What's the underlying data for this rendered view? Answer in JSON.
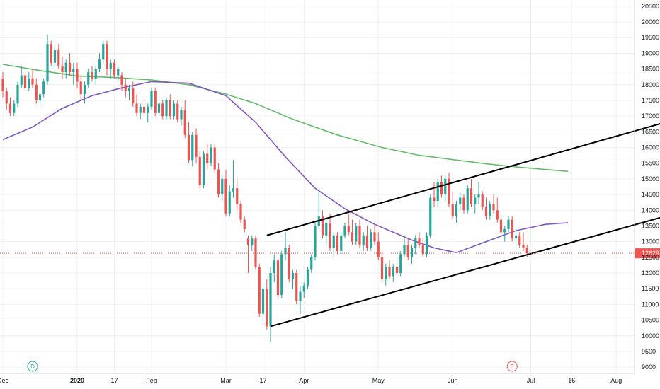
{
  "chart_data": {
    "type": "candlestick",
    "colors": {
      "up": "#26a69a",
      "down": "#ef5350",
      "ma_long": "#66bb6a",
      "ma_medium": "#7e57c2",
      "channel": "#000000",
      "price_line": "#ef5350",
      "grid": "#eef0f3",
      "axis_text": "#131722"
    },
    "y_axis": {
      "ylim": [
        8800,
        20700
      ],
      "ticks": [
        "9000",
        "9500",
        "10000",
        "10500",
        "11000",
        "11500",
        "12000",
        "12500",
        "13000",
        "13500",
        "14000",
        "14500",
        "15000",
        "15500",
        "16000",
        "16500",
        "17000",
        "17500",
        "18000",
        "18500",
        "19000",
        "19500",
        "20000",
        "20500"
      ]
    },
    "x_axis": {
      "labels": [
        {
          "text": "Dec",
          "index": 0,
          "bold": false
        },
        {
          "text": "2020",
          "index": 20,
          "bold": true
        },
        {
          "text": "17",
          "index": 30,
          "bold": false
        },
        {
          "text": "Feb",
          "index": 40,
          "bold": false
        },
        {
          "text": "Mar",
          "index": 60,
          "bold": false
        },
        {
          "text": "17",
          "index": 70,
          "bold": false
        },
        {
          "text": "Apr",
          "index": 81,
          "bold": false
        },
        {
          "text": "May",
          "index": 101,
          "bold": false
        },
        {
          "text": "Jun",
          "index": 121,
          "bold": false
        },
        {
          "text": "Jul",
          "index": 142,
          "bold": false
        },
        {
          "text": "16",
          "index": 153,
          "bold": false
        },
        {
          "text": "Aug",
          "index": 165,
          "bold": false
        }
      ],
      "total_slots": 190
    },
    "last_price": {
      "value": 12629,
      "label": "12629"
    },
    "markers": [
      {
        "label": "D",
        "index": 8,
        "color": "#26a69a"
      },
      {
        "label": "E",
        "index": 137,
        "color": "#ef5350"
      }
    ],
    "candles": [
      [
        18200,
        18400,
        17600,
        17800
      ],
      [
        17800,
        17900,
        17200,
        17400
      ],
      [
        17400,
        17600,
        17000,
        17100
      ],
      [
        17100,
        17500,
        17000,
        17400
      ],
      [
        17400,
        18100,
        17300,
        18000
      ],
      [
        18000,
        18600,
        17900,
        18300
      ],
      [
        18300,
        18400,
        17800,
        17900
      ],
      [
        17900,
        18400,
        17800,
        18200
      ],
      [
        18200,
        18500,
        17900,
        18000
      ],
      [
        18000,
        18200,
        17400,
        17500
      ],
      [
        17500,
        17800,
        17300,
        17700
      ],
      [
        17700,
        18200,
        17600,
        18100
      ],
      [
        18100,
        19600,
        18000,
        19300
      ],
      [
        19300,
        19400,
        18600,
        18700
      ],
      [
        18700,
        19200,
        18500,
        19100
      ],
      [
        19100,
        19300,
        18500,
        18600
      ],
      [
        18600,
        18900,
        18200,
        18400
      ],
      [
        18400,
        18800,
        18200,
        18700
      ],
      [
        18700,
        19000,
        18300,
        18400
      ],
      [
        18400,
        18700,
        18000,
        18500
      ],
      [
        18500,
        18700,
        17900,
        18100
      ],
      [
        18100,
        18300,
        17500,
        17700
      ],
      [
        17700,
        18100,
        17400,
        18000
      ],
      [
        18000,
        18500,
        17900,
        18400
      ],
      [
        18400,
        18600,
        18100,
        18200
      ],
      [
        18200,
        18600,
        18000,
        18500
      ],
      [
        18500,
        19000,
        18400,
        18800
      ],
      [
        18800,
        19400,
        18700,
        19300
      ],
      [
        19300,
        19400,
        18300,
        18500
      ],
      [
        18500,
        18800,
        18200,
        18700
      ],
      [
        18700,
        18800,
        18200,
        18300
      ],
      [
        18300,
        18600,
        18100,
        18500
      ],
      [
        18300,
        18400,
        17800,
        18000
      ],
      [
        18000,
        18200,
        17600,
        17800
      ],
      [
        17800,
        18000,
        17500,
        17900
      ],
      [
        17900,
        18100,
        17300,
        17400
      ],
      [
        17400,
        17700,
        17000,
        17100
      ],
      [
        17100,
        17400,
        16900,
        17300
      ],
      [
        17300,
        17500,
        17000,
        17100
      ],
      [
        17100,
        17400,
        16800,
        17300
      ],
      [
        17300,
        17900,
        17200,
        17800
      ],
      [
        17800,
        17900,
        17000,
        17100
      ],
      [
        17100,
        17500,
        17000,
        17400
      ],
      [
        17400,
        17500,
        16900,
        17000
      ],
      [
        17000,
        17600,
        16900,
        17500
      ],
      [
        17500,
        17700,
        16900,
        17000
      ],
      [
        17000,
        17500,
        16900,
        17400
      ],
      [
        17400,
        17500,
        16800,
        16900
      ],
      [
        16900,
        17300,
        16700,
        17200
      ],
      [
        17200,
        17500,
        16300,
        16400
      ],
      [
        16400,
        16800,
        15500,
        15600
      ],
      [
        15600,
        16500,
        15400,
        16400
      ],
      [
        16400,
        16600,
        15500,
        15700
      ],
      [
        15700,
        15900,
        14700,
        14800
      ],
      [
        14800,
        15900,
        14700,
        15800
      ],
      [
        15800,
        16100,
        15300,
        15500
      ],
      [
        15500,
        16100,
        15400,
        16000
      ],
      [
        16000,
        16100,
        15200,
        15300
      ],
      [
        15300,
        15500,
        14400,
        14500
      ],
      [
        14500,
        15100,
        14300,
        15000
      ],
      [
        15000,
        15300,
        13800,
        13900
      ],
      [
        13900,
        14800,
        13800,
        14600
      ],
      [
        14600,
        15600,
        14400,
        14700
      ],
      [
        14700,
        15000,
        14000,
        14200
      ],
      [
        14200,
        14300,
        13600,
        13700
      ],
      [
        13700,
        13800,
        13300,
        13400
      ],
      [
        13100,
        13200,
        12000,
        12900
      ],
      [
        12900,
        13200,
        12700,
        13100
      ],
      [
        13100,
        13200,
        12100,
        12200
      ],
      [
        12200,
        12300,
        10600,
        10700
      ],
      [
        10700,
        11600,
        10400,
        11500
      ],
      [
        11500,
        11800,
        10200,
        10300
      ],
      [
        10300,
        12200,
        9800,
        12000
      ],
      [
        12000,
        12600,
        11700,
        12400
      ],
      [
        12400,
        12500,
        11200,
        11300
      ],
      [
        11300,
        12700,
        11200,
        12600
      ],
      [
        12600,
        13300,
        12400,
        12800
      ],
      [
        12800,
        12900,
        11700,
        11800
      ],
      [
        11800,
        12100,
        11500,
        12000
      ],
      [
        12000,
        12100,
        11000,
        11100
      ],
      [
        11100,
        11600,
        10700,
        11400
      ],
      [
        11400,
        11700,
        11200,
        11600
      ],
      [
        11600,
        12200,
        11500,
        12100
      ],
      [
        12100,
        12600,
        12000,
        12500
      ],
      [
        12500,
        13600,
        12400,
        13500
      ],
      [
        13500,
        14600,
        13400,
        13800
      ],
      [
        13800,
        14000,
        13100,
        13200
      ],
      [
        13200,
        13700,
        12900,
        13600
      ],
      [
        13600,
        13900,
        12700,
        12800
      ],
      [
        12800,
        13300,
        12500,
        13200
      ],
      [
        13200,
        13300,
        12600,
        12700
      ],
      [
        12700,
        13300,
        12600,
        13200
      ],
      [
        13200,
        13600,
        13100,
        13500
      ],
      [
        13500,
        13900,
        13200,
        13300
      ],
      [
        13300,
        13700,
        12900,
        13000
      ],
      [
        13000,
        13600,
        12900,
        13500
      ],
      [
        13500,
        13700,
        12800,
        12900
      ],
      [
        12900,
        13300,
        12700,
        13200
      ],
      [
        13200,
        13500,
        12700,
        12800
      ],
      [
        12800,
        13400,
        12700,
        13300
      ],
      [
        13300,
        13500,
        12900,
        13000
      ],
      [
        13000,
        13300,
        12400,
        12500
      ],
      [
        12500,
        12700,
        11700,
        11800
      ],
      [
        11800,
        12300,
        11600,
        12200
      ],
      [
        12200,
        12400,
        11800,
        11900
      ],
      [
        11900,
        12300,
        11700,
        12200
      ],
      [
        12200,
        12500,
        11900,
        12000
      ],
      [
        12000,
        12700,
        11900,
        12600
      ],
      [
        12600,
        13100,
        12500,
        12900
      ],
      [
        12900,
        13100,
        12400,
        12500
      ],
      [
        12500,
        12900,
        12300,
        12800
      ],
      [
        12800,
        13200,
        12600,
        13100
      ],
      [
        13100,
        13300,
        12800,
        12900
      ],
      [
        12900,
        13100,
        12500,
        12600
      ],
      [
        12600,
        13300,
        12500,
        13200
      ],
      [
        13200,
        14500,
        13100,
        14400
      ],
      [
        14400,
        14900,
        14100,
        14300
      ],
      [
        14300,
        15000,
        14100,
        14900
      ],
      [
        14900,
        15100,
        14400,
        14500
      ],
      [
        14500,
        15100,
        14300,
        15000
      ],
      [
        15000,
        15200,
        14100,
        14200
      ],
      [
        14200,
        14600,
        13700,
        13800
      ],
      [
        13800,
        14300,
        13600,
        14200
      ],
      [
        14200,
        14600,
        14000,
        14400
      ],
      [
        14400,
        14500,
        13900,
        14000
      ],
      [
        14000,
        14800,
        13900,
        14700
      ],
      [
        14700,
        15000,
        14100,
        14200
      ],
      [
        14200,
        14500,
        13900,
        14400
      ],
      [
        14400,
        14900,
        14200,
        14500
      ],
      [
        14500,
        14600,
        14000,
        14100
      ],
      [
        14100,
        14400,
        13700,
        13800
      ],
      [
        13800,
        14300,
        13700,
        14200
      ],
      [
        14200,
        14500,
        13900,
        14000
      ],
      [
        14000,
        14400,
        13600,
        13700
      ],
      [
        13700,
        13900,
        13200,
        13300
      ],
      [
        13300,
        13500,
        13000,
        13400
      ],
      [
        13400,
        13800,
        13300,
        13700
      ],
      [
        13700,
        13800,
        13000,
        13100
      ],
      [
        13100,
        13500,
        12900,
        13200
      ],
      [
        13200,
        13300,
        12800,
        12900
      ],
      [
        12900,
        13300,
        12700,
        12800
      ],
      [
        12800,
        12900,
        12500,
        12629
      ]
    ],
    "ma_long": [
      [
        0,
        18650
      ],
      [
        10,
        18450
      ],
      [
        20,
        18280
      ],
      [
        30,
        18230
      ],
      [
        40,
        18150
      ],
      [
        50,
        18000
      ],
      [
        60,
        17700
      ],
      [
        68,
        17400
      ],
      [
        78,
        16900
      ],
      [
        90,
        16400
      ],
      [
        102,
        16000
      ],
      [
        112,
        15750
      ],
      [
        122,
        15600
      ],
      [
        130,
        15480
      ],
      [
        138,
        15380
      ],
      [
        146,
        15300
      ],
      [
        152,
        15240
      ]
    ],
    "ma_medium": [
      [
        0,
        16250
      ],
      [
        8,
        16650
      ],
      [
        16,
        17250
      ],
      [
        24,
        17650
      ],
      [
        32,
        17900
      ],
      [
        40,
        18100
      ],
      [
        50,
        18050
      ],
      [
        60,
        17650
      ],
      [
        68,
        16800
      ],
      [
        76,
        15700
      ],
      [
        84,
        14700
      ],
      [
        92,
        14050
      ],
      [
        100,
        13550
      ],
      [
        110,
        13050
      ],
      [
        116,
        12800
      ],
      [
        122,
        12650
      ],
      [
        130,
        13000
      ],
      [
        138,
        13350
      ],
      [
        146,
        13550
      ],
      [
        152,
        13600
      ]
    ],
    "channel_upper": {
      "start": [
        71,
        13200
      ],
      "end": [
        190,
        17200
      ]
    },
    "channel_lower": {
      "start": [
        72,
        10300
      ],
      "end": [
        190,
        14200
      ]
    }
  }
}
